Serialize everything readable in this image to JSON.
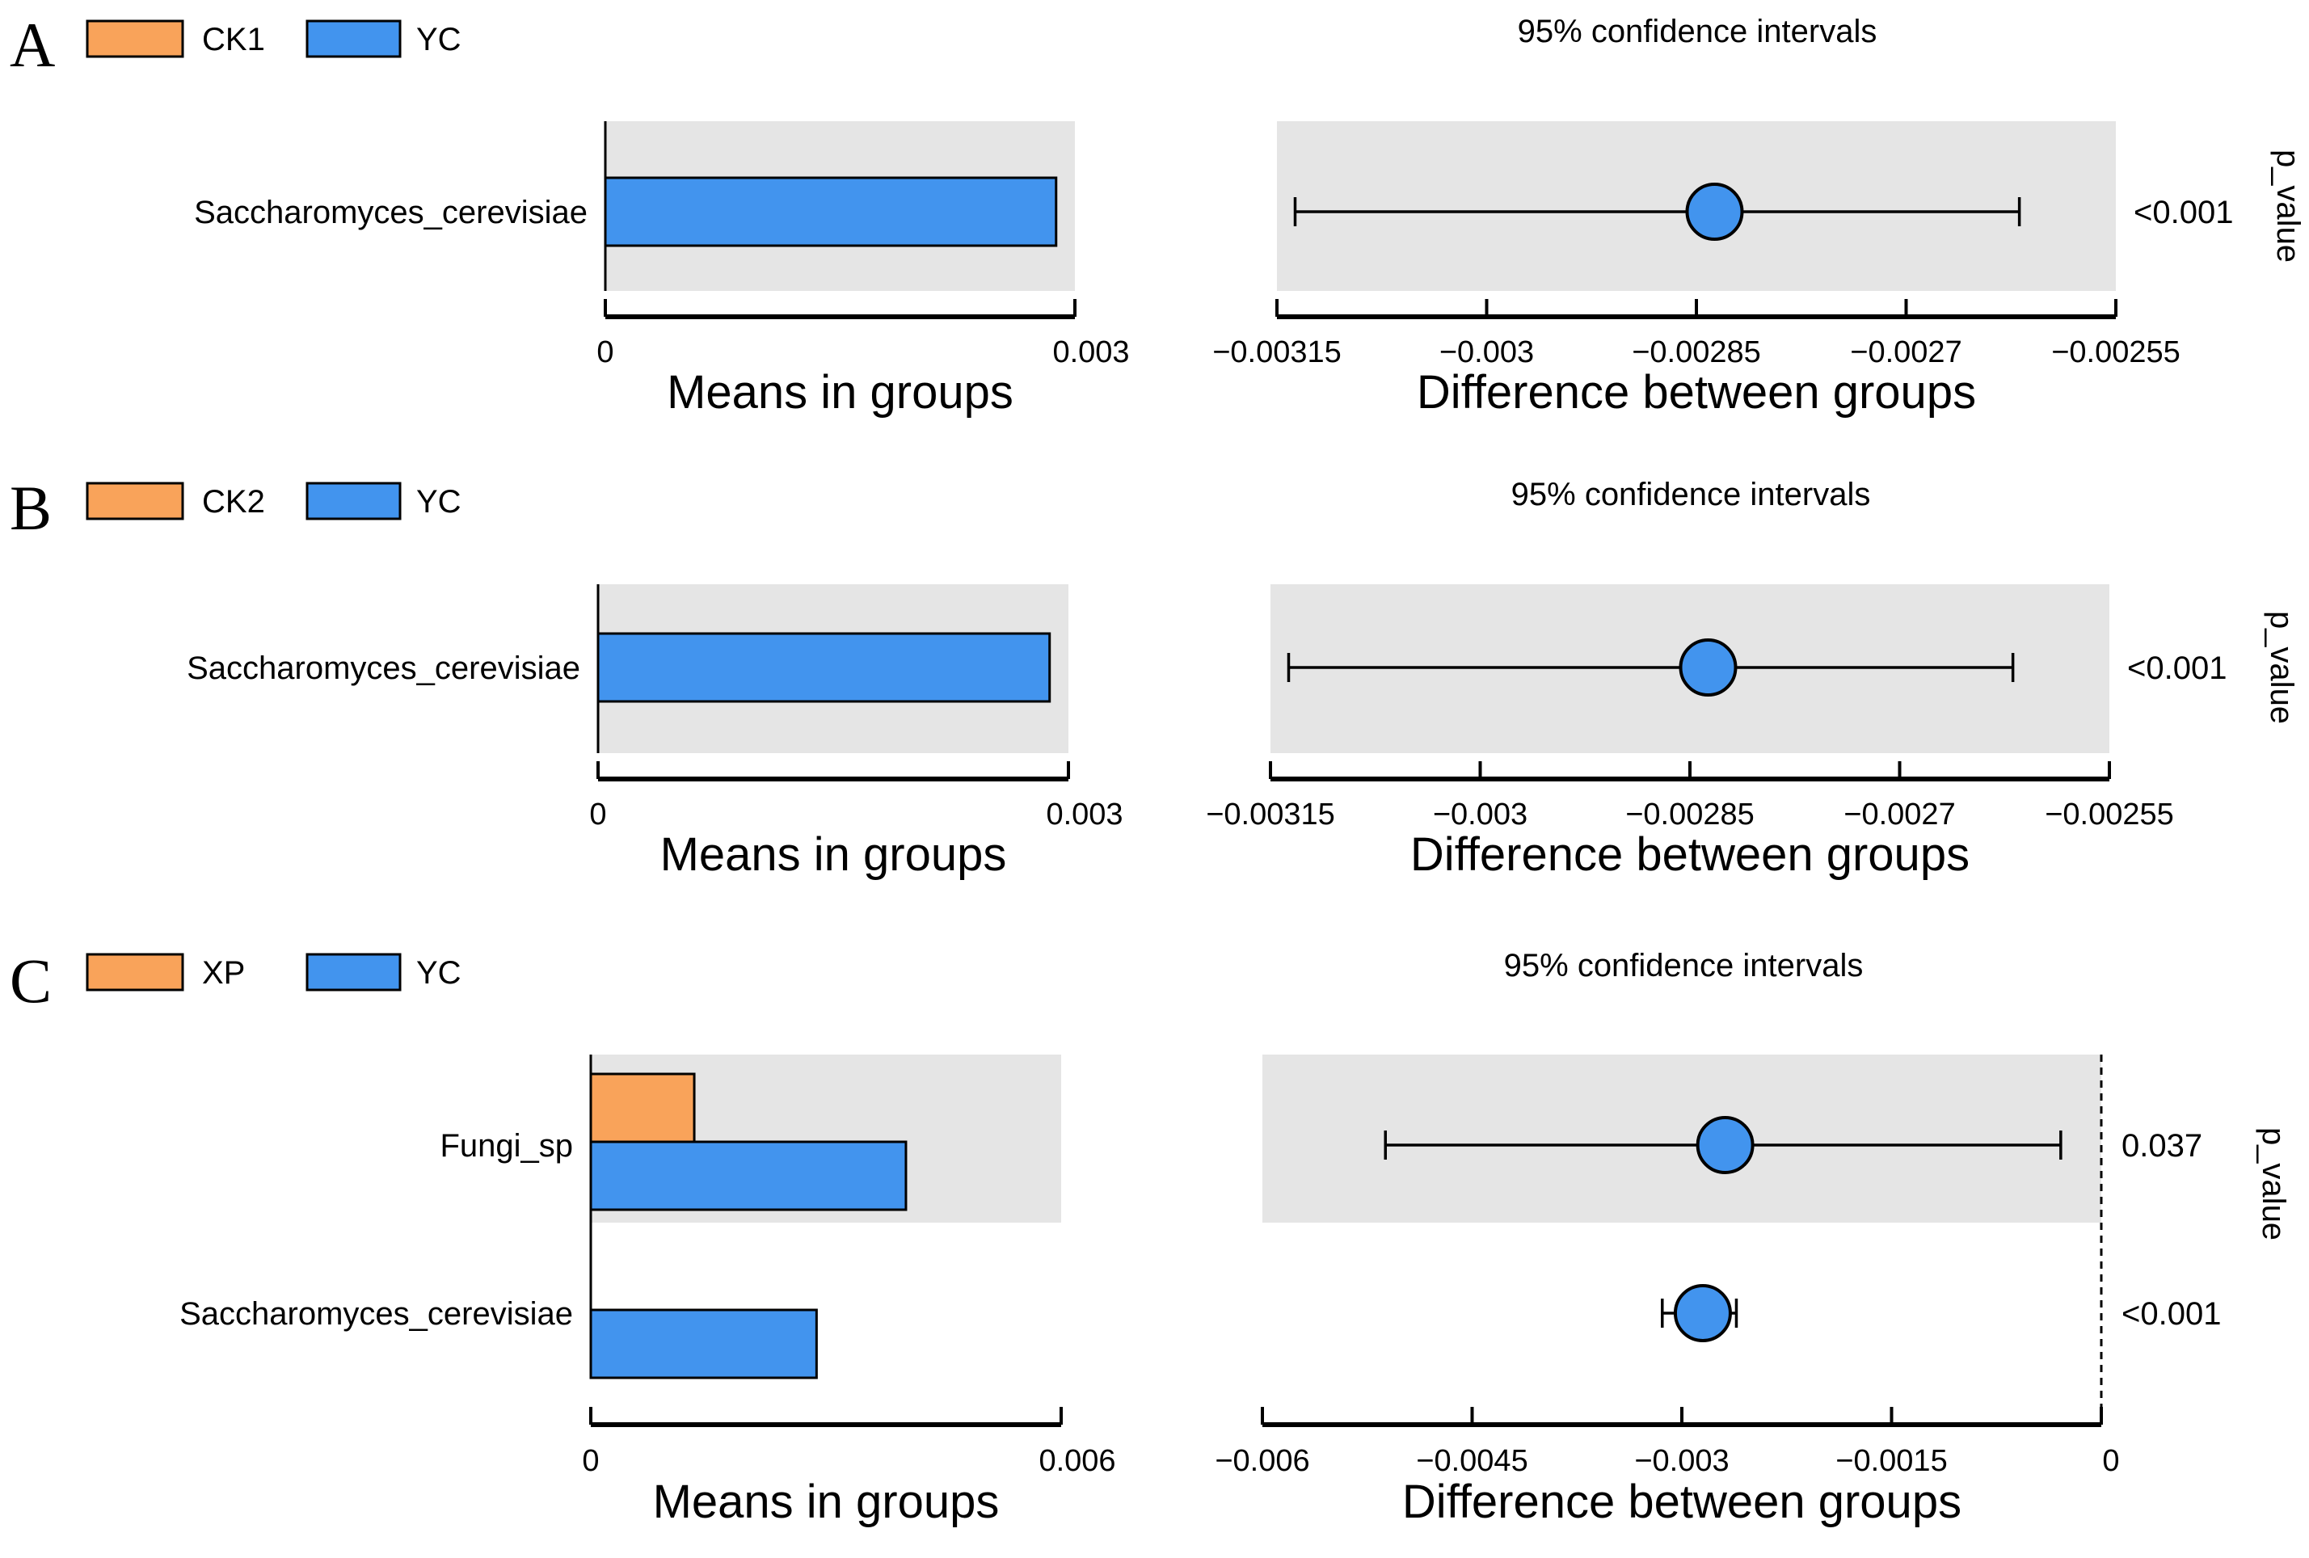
{
  "colors": {
    "group_a": "#F9A35A",
    "group_b": "#4294EE",
    "panel_bg": "#E5E5E5",
    "axis": "#000000",
    "ink": "#000000"
  },
  "chart_data": [
    {
      "type": "extended-error-bar",
      "panel_label": "A",
      "legend": [
        "CK1",
        "YC"
      ],
      "categories": [
        "Saccharomyces_cerevisiae"
      ],
      "bar_chart": {
        "type": "bar",
        "series": [
          {
            "name": "CK1",
            "values": [
              0
            ]
          },
          {
            "name": "YC",
            "values": [
              0.00288
            ]
          }
        ],
        "xlim": [
          0,
          0.003
        ],
        "ticks": [
          "0",
          "0.003"
        ],
        "xlabel": "Means in groups"
      },
      "diff_chart": {
        "type": "scatter",
        "title": "95% confidence intervals",
        "estimates": [
          -0.002837
        ],
        "ci_low": [
          -0.003137
        ],
        "ci_high": [
          -0.002619
        ],
        "xlim": [
          -0.00315,
          -0.00255
        ],
        "ticks": [
          -0.00315,
          -0.003,
          -0.00285,
          -0.0027,
          -0.00255
        ],
        "tick_labels": [
          "−0.00315",
          "−0.003",
          "−0.00285",
          "−0.0027",
          "−0.00255"
        ],
        "xlabel": "Difference between groups",
        "zero_line": false
      },
      "p_value_label": "p_value",
      "p_values": [
        "<0.001"
      ]
    },
    {
      "type": "extended-error-bar",
      "panel_label": "B",
      "legend": [
        "CK2",
        "YC"
      ],
      "categories": [
        "Saccharomyces_cerevisiae"
      ],
      "bar_chart": {
        "type": "bar",
        "series": [
          {
            "name": "CK2",
            "values": [
              0
            ]
          },
          {
            "name": "YC",
            "values": [
              0.00288
            ]
          }
        ],
        "xlim": [
          0,
          0.003
        ],
        "ticks": [
          "0",
          "0.003"
        ],
        "xlabel": "Means in groups"
      },
      "diff_chart": {
        "type": "scatter",
        "title": "95% confidence intervals",
        "estimates": [
          -0.002837
        ],
        "ci_low": [
          -0.003137
        ],
        "ci_high": [
          -0.002619
        ],
        "xlim": [
          -0.00315,
          -0.00255
        ],
        "ticks": [
          -0.00315,
          -0.003,
          -0.00285,
          -0.0027,
          -0.00255
        ],
        "tick_labels": [
          "−0.00315",
          "−0.003",
          "−0.00285",
          "−0.0027",
          "−0.00255"
        ],
        "xlabel": "Difference between groups",
        "zero_line": false
      },
      "p_value_label": "p_value",
      "p_values": [
        "<0.001"
      ]
    },
    {
      "type": "extended-error-bar",
      "panel_label": "C",
      "legend": [
        "XP",
        "YC"
      ],
      "categories": [
        "Fungi_sp",
        "Saccharomyces_cerevisiae"
      ],
      "bar_chart": {
        "type": "bar",
        "series": [
          {
            "name": "XP",
            "values": [
              0.00132,
              0
            ]
          },
          {
            "name": "YC",
            "values": [
              0.00402,
              0.00288
            ]
          }
        ],
        "xlim": [
          0,
          0.006
        ],
        "ticks": [
          "0",
          "0.006"
        ],
        "xlabel": "Means in groups"
      },
      "diff_chart": {
        "type": "scatter",
        "title": "95% confidence intervals",
        "estimates": [
          -0.00269,
          -0.00285
        ],
        "ci_low": [
          -0.00512,
          -0.00314
        ],
        "ci_high": [
          -0.00029,
          -0.00261
        ],
        "xlim": [
          -0.006,
          0
        ],
        "ticks": [
          -0.006,
          -0.0045,
          -0.003,
          -0.0015,
          0
        ],
        "tick_labels": [
          "−0.006",
          "−0.0045",
          "−0.003",
          "−0.0015",
          "0"
        ],
        "xlabel": "Difference between groups",
        "zero_line": true
      },
      "p_value_label": "p_value",
      "p_values": [
        "0.037",
        "<0.001"
      ]
    }
  ]
}
